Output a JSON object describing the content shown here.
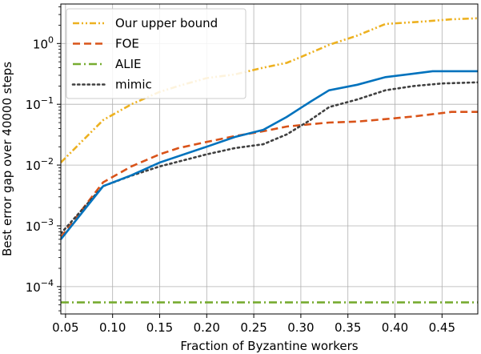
{
  "chart_data": {
    "type": "line",
    "xlabel": "Fraction of Byzantine workers",
    "ylabel": "Best error gap over 40000 steps",
    "xlim": [
      0.045,
      0.488
    ],
    "ylim_log10": [
      -4.45,
      0.65
    ],
    "y_scale": "log",
    "grid": true,
    "legend_position": "top-left",
    "x_ticks": [
      {
        "value": 0.05,
        "label": "0.05"
      },
      {
        "value": 0.1,
        "label": "0.10"
      },
      {
        "value": 0.15,
        "label": "0.15"
      },
      {
        "value": 0.2,
        "label": "0.20"
      },
      {
        "value": 0.25,
        "label": "0.25"
      },
      {
        "value": 0.3,
        "label": "0.30"
      },
      {
        "value": 0.35,
        "label": "0.35"
      },
      {
        "value": 0.4,
        "label": "0.40"
      },
      {
        "value": 0.45,
        "label": "0.45"
      }
    ],
    "y_ticks": [
      {
        "exp": 0,
        "label_base": "10",
        "label_exp": "0"
      },
      {
        "exp": -1,
        "label_base": "10",
        "label_exp": "−1"
      },
      {
        "exp": -2,
        "label_base": "10",
        "label_exp": "−2"
      },
      {
        "exp": -3,
        "label_base": "10",
        "label_exp": "−3"
      },
      {
        "exp": -4,
        "label_base": "10",
        "label_exp": "−4"
      }
    ],
    "series": [
      {
        "name": "Our upper bound",
        "color": "#edb120",
        "dash": "dashdotdot",
        "points": [
          [
            0.045,
            0.011
          ],
          [
            0.09,
            0.055
          ],
          [
            0.12,
            0.1
          ],
          [
            0.15,
            0.16
          ],
          [
            0.17,
            0.2
          ],
          [
            0.2,
            0.27
          ],
          [
            0.23,
            0.31
          ],
          [
            0.26,
            0.4
          ],
          [
            0.285,
            0.48
          ],
          [
            0.3,
            0.6
          ],
          [
            0.33,
            0.95
          ],
          [
            0.36,
            1.35
          ],
          [
            0.39,
            2.1
          ],
          [
            0.43,
            2.3
          ],
          [
            0.46,
            2.5
          ],
          [
            0.488,
            2.6
          ]
        ]
      },
      {
        "name": "FOE",
        "color": "#d95319",
        "dash": "dash",
        "points": [
          [
            0.045,
            0.00065
          ],
          [
            0.09,
            0.0052
          ],
          [
            0.12,
            0.0095
          ],
          [
            0.15,
            0.015
          ],
          [
            0.17,
            0.019
          ],
          [
            0.2,
            0.024
          ],
          [
            0.23,
            0.03
          ],
          [
            0.26,
            0.036
          ],
          [
            0.285,
            0.043
          ],
          [
            0.31,
            0.047
          ],
          [
            0.33,
            0.05
          ],
          [
            0.36,
            0.052
          ],
          [
            0.39,
            0.057
          ],
          [
            0.42,
            0.063
          ],
          [
            0.46,
            0.075
          ],
          [
            0.488,
            0.075
          ]
        ]
      },
      {
        "name": "ALIE",
        "color": "#77ac30",
        "dash": "dashdot",
        "points": [
          [
            0.045,
            5.5e-05
          ],
          [
            0.488,
            5.5e-05
          ]
        ]
      },
      {
        "name": "mimic",
        "color": "#404040",
        "dash": "dot",
        "points": [
          [
            0.045,
            0.00075
          ],
          [
            0.09,
            0.0045
          ],
          [
            0.12,
            0.0067
          ],
          [
            0.15,
            0.0095
          ],
          [
            0.2,
            0.015
          ],
          [
            0.23,
            0.019
          ],
          [
            0.26,
            0.022
          ],
          [
            0.285,
            0.032
          ],
          [
            0.31,
            0.055
          ],
          [
            0.33,
            0.09
          ],
          [
            0.36,
            0.12
          ],
          [
            0.39,
            0.17
          ],
          [
            0.42,
            0.2
          ],
          [
            0.45,
            0.22
          ],
          [
            0.488,
            0.23
          ]
        ]
      },
      {
        "name": "",
        "color": "#0072bd",
        "dash": "solid",
        "points": [
          [
            0.045,
            0.0006
          ],
          [
            0.09,
            0.0045
          ],
          [
            0.12,
            0.0068
          ],
          [
            0.15,
            0.011
          ],
          [
            0.2,
            0.02
          ],
          [
            0.23,
            0.029
          ],
          [
            0.26,
            0.038
          ],
          [
            0.285,
            0.062
          ],
          [
            0.31,
            0.11
          ],
          [
            0.33,
            0.17
          ],
          [
            0.36,
            0.21
          ],
          [
            0.39,
            0.28
          ],
          [
            0.42,
            0.32
          ],
          [
            0.44,
            0.35
          ],
          [
            0.488,
            0.35
          ]
        ]
      }
    ]
  }
}
